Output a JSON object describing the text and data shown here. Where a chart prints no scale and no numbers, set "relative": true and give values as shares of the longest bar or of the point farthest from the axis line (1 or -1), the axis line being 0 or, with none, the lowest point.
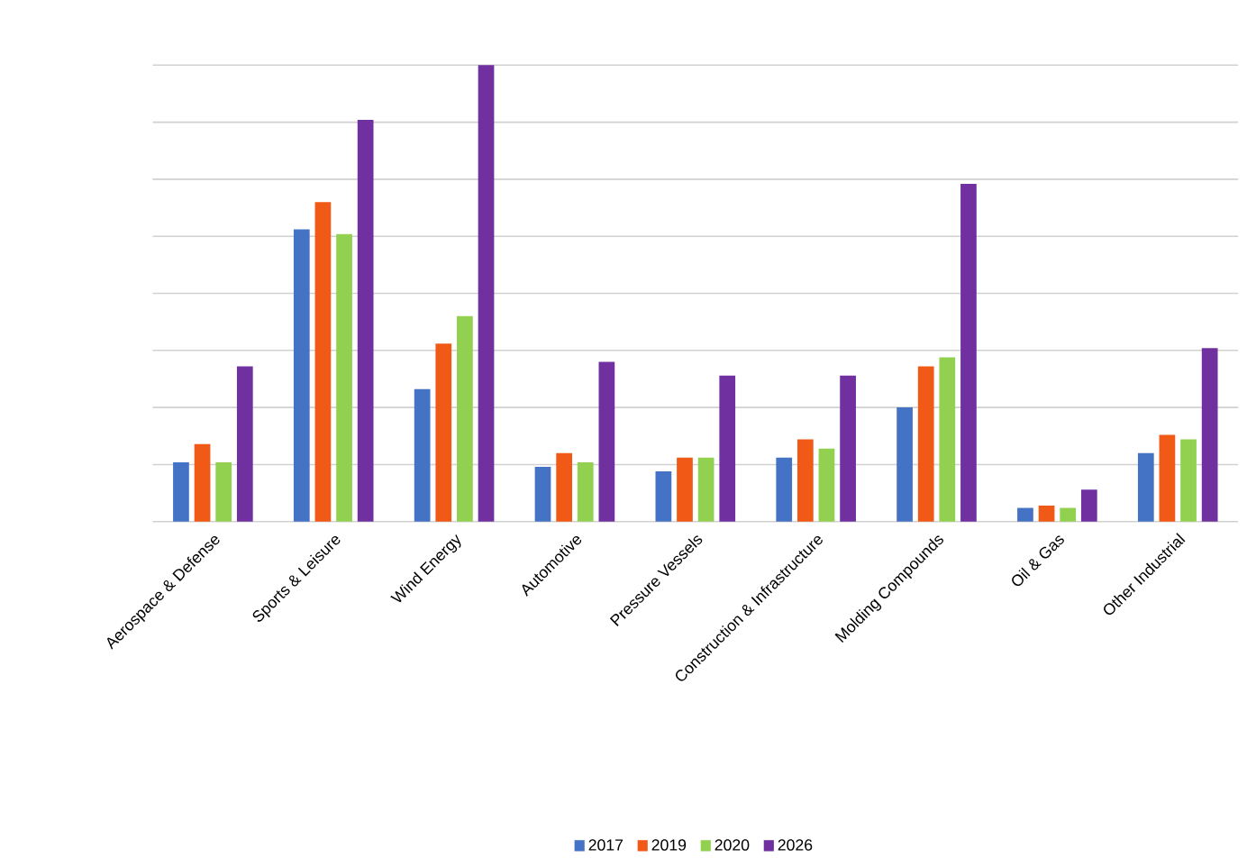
{
  "chart_data": {
    "type": "bar",
    "relative": true,
    "grid": "y",
    "legend": "bottom",
    "categories": [
      "Aerospace & Defense",
      "Sports & Leisure",
      "Wind Energy",
      "Automotive",
      "Pressure Vessels",
      "Construction & Infrastructure",
      "Molding Compounds",
      "Oil & Gas",
      "Other Industrial"
    ],
    "series": [
      {
        "name": "2017",
        "color": "#4472c4",
        "values": [
          0.13,
          0.64,
          0.29,
          0.12,
          0.11,
          0.14,
          0.25,
          0.03,
          0.15
        ]
      },
      {
        "name": "2019",
        "color": "#f05a16",
        "values": [
          0.17,
          0.7,
          0.39,
          0.15,
          0.14,
          0.18,
          0.34,
          0.035,
          0.19
        ]
      },
      {
        "name": "2020",
        "color": "#92d050",
        "values": [
          0.13,
          0.63,
          0.45,
          0.13,
          0.14,
          0.16,
          0.36,
          0.03,
          0.18
        ]
      },
      {
        "name": "2026",
        "color": "#7030a0",
        "values": [
          0.34,
          0.88,
          1,
          0.35,
          0.32,
          0.32,
          0.74,
          0.07,
          0.38
        ]
      }
    ]
  }
}
